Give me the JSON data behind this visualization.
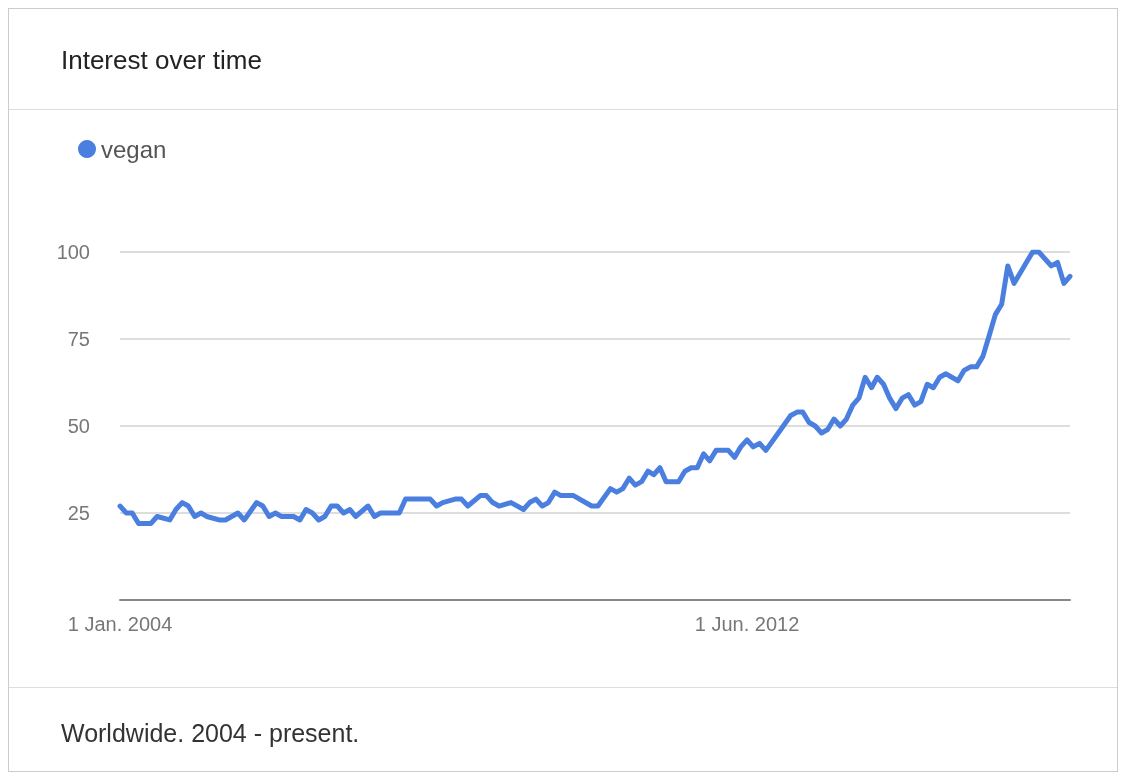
{
  "chart_data": {
    "type": "line",
    "title": "Interest over time",
    "annotations": [
      "Worldwide. 2004 - present."
    ],
    "x": [
      "2004-01",
      "2004-02",
      "2004-03",
      "2004-04",
      "2004-06",
      "2004-07",
      "2004-09",
      "2004-10",
      "2004-11",
      "2004-12",
      "2005-01",
      "2005-02",
      "2005-03",
      "2005-05",
      "2005-06",
      "2005-08",
      "2005-09",
      "2005-11",
      "2005-12",
      "2006-01",
      "2006-02",
      "2006-03",
      "2006-05",
      "2006-06",
      "2006-07",
      "2006-08",
      "2006-09",
      "2006-10",
      "2006-11",
      "2006-12",
      "2007-01",
      "2007-02",
      "2007-03",
      "2007-05",
      "2007-06",
      "2007-07",
      "2007-09",
      "2007-10",
      "2007-11",
      "2008-03",
      "2008-04",
      "2008-05",
      "2008-07",
      "2008-08",
      "2008-09",
      "2008-11",
      "2008-12",
      "2009-01",
      "2009-02",
      "2009-04",
      "2009-06",
      "2009-07",
      "2009-08",
      "2009-09",
      "2009-10",
      "2009-11",
      "2009-12",
      "2010-01",
      "2010-02",
      "2010-05",
      "2010-06",
      "2010-08",
      "2010-09",
      "2010-10",
      "2010-11",
      "2010-12",
      "2011-01",
      "2011-02",
      "2011-03",
      "2011-04",
      "2011-05",
      "2011-07",
      "2011-08",
      "2011-09",
      "2011-10",
      "2011-11",
      "2011-12",
      "2012-01",
      "2012-02",
      "2012-03",
      "2012-04",
      "2012-05",
      "2012-06",
      "2012-07",
      "2012-08",
      "2012-09",
      "2012-11",
      "2013-01",
      "2013-02",
      "2013-03",
      "2013-04",
      "2013-05",
      "2013-06",
      "2013-07",
      "2013-08",
      "2013-09",
      "2013-10",
      "2013-11",
      "2013-12",
      "2014-01",
      "2014-02",
      "2014-03",
      "2014-04",
      "2014-05",
      "2014-06",
      "2014-07",
      "2014-08",
      "2014-09",
      "2014-10",
      "2014-11",
      "2014-12",
      "2015-01",
      "2015-02",
      "2015-04",
      "2015-05",
      "2015-06",
      "2015-07",
      "2015-08",
      "2015-09",
      "2015-10",
      "2015-11",
      "2015-12",
      "2016-01",
      "2016-03",
      "2016-04",
      "2016-05",
      "2016-06",
      "2016-07",
      "2016-08",
      "2016-09",
      "2016-10"
    ],
    "series": [
      {
        "name": "vegan",
        "color": "#4a7fe0",
        "values": [
          27,
          25,
          25,
          22,
          22,
          24,
          23,
          26,
          28,
          27,
          24,
          25,
          24,
          23,
          23,
          25,
          23,
          28,
          27,
          24,
          25,
          24,
          24,
          23,
          26,
          25,
          23,
          24,
          27,
          27,
          25,
          26,
          24,
          27,
          24,
          25,
          25,
          25,
          29,
          29,
          27,
          28,
          29,
          29,
          27,
          30,
          30,
          28,
          27,
          28,
          26,
          28,
          29,
          27,
          28,
          31,
          30,
          30,
          30,
          27,
          27,
          32,
          31,
          32,
          35,
          33,
          34,
          37,
          36,
          38,
          34,
          34,
          37,
          38,
          38,
          42,
          40,
          43,
          43,
          43,
          41,
          44,
          46,
          44,
          45,
          43,
          48,
          53,
          54,
          54,
          51,
          50,
          48,
          49,
          52,
          50,
          52,
          56,
          58,
          64,
          61,
          64,
          62,
          58,
          55,
          58,
          59,
          56,
          57,
          62,
          61,
          64,
          65,
          63,
          66,
          67,
          67,
          70,
          76,
          82,
          85,
          96,
          91,
          97,
          100,
          100,
          98,
          96,
          97,
          91,
          93
        ]
      }
    ],
    "xlim": [
      "2004-01",
      "2016-10"
    ],
    "xticks": [
      {
        "value": "2004-01-01",
        "label": "1 Jan. 2004"
      },
      {
        "value": "2012-06-01",
        "label": "1 Jun. 2012"
      }
    ],
    "ylim": [
      0,
      100
    ],
    "yticks": [
      25,
      50,
      75,
      100
    ],
    "grid": "y",
    "legend": "top left",
    "marker": "none",
    "line_style": "solid"
  }
}
